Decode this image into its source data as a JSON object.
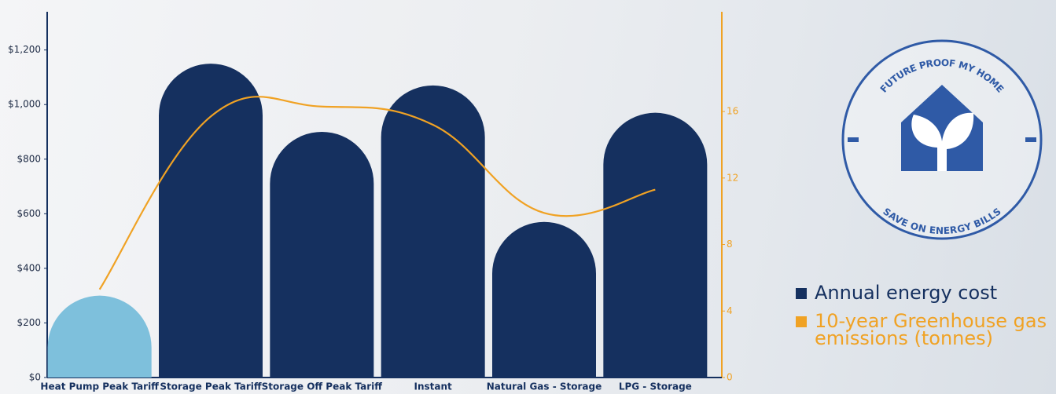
{
  "chart_data": {
    "type": "bar",
    "categories": [
      "Heat Pump Peak Tariff",
      "Storage Peak Tariff",
      "Storage Off Peak Tariff",
      "Instant",
      "Natural Gas - Storage",
      "LPG - Storage"
    ],
    "series": [
      {
        "name": "Annual energy cost",
        "type": "bar",
        "color": "#15305f",
        "colors": [
          "#7ec0dc",
          "#15305f",
          "#15305f",
          "#15305f",
          "#15305f",
          "#15305f"
        ],
        "values": [
          300,
          1150,
          900,
          1070,
          570,
          970
        ]
      },
      {
        "name": "10-year Greenhouse gas emissions (tonnes)",
        "type": "line",
        "axis": "y2",
        "color": "#f0a224",
        "values": [
          5.3,
          15.7,
          16.3,
          15.2,
          9.9,
          11.3
        ]
      }
    ],
    "ylim": [
      0,
      1340
    ],
    "yticks": [
      {
        "value": 0,
        "label": "$0"
      },
      {
        "value": 200,
        "label": "$200"
      },
      {
        "value": 400,
        "label": "$400"
      },
      {
        "value": 600,
        "label": "$600"
      },
      {
        "value": 800,
        "label": "$800"
      },
      {
        "value": 1000,
        "label": "$1,000"
      },
      {
        "value": 1200,
        "label": "$1,200"
      }
    ],
    "y2lim": [
      0,
      22
    ],
    "y2ticks": [
      0,
      4,
      8,
      12,
      16
    ],
    "badge": {
      "top_text": "FUTURE PROOF MY HOME",
      "bottom_text": "SAVE ON ENERGY BILLS"
    }
  }
}
